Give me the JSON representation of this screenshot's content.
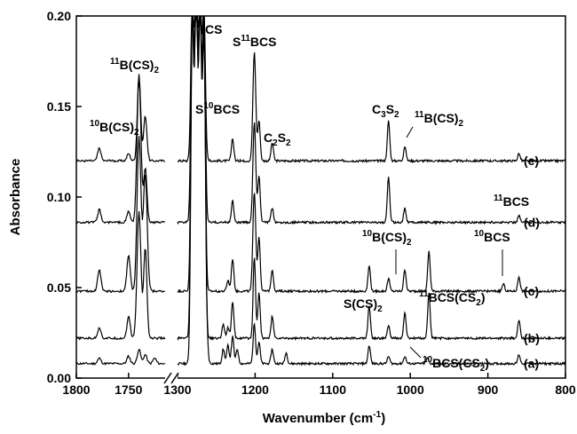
{
  "chart_data": {
    "type": "line",
    "xlabel_main": "Wavenumber (cm",
    "xlabel_sup": "-1",
    "xlabel_tail": ")",
    "ylabel": "Absorbance",
    "xlim": [
      1800,
      800
    ],
    "x_break": [
      1715,
      1300
    ],
    "ylim": [
      0.0,
      0.2
    ],
    "grid": false,
    "x_ticks": [
      {
        "value": 1800,
        "label": "1800"
      },
      {
        "value": 1750,
        "label": "1750"
      },
      {
        "value": 1300,
        "label": "1300"
      },
      {
        "value": 1200,
        "label": "1200"
      },
      {
        "value": 1100,
        "label": "1100"
      },
      {
        "value": 1000,
        "label": "1000"
      },
      {
        "value": 900,
        "label": "900"
      },
      {
        "value": 800,
        "label": "800"
      }
    ],
    "y_ticks": [
      {
        "value": 0.0,
        "label": "0.00"
      },
      {
        "value": 0.05,
        "label": "0.05"
      },
      {
        "value": 0.1,
        "label": "0.10"
      },
      {
        "value": 0.15,
        "label": "0.15"
      },
      {
        "value": 0.2,
        "label": "0.20"
      }
    ],
    "series": [
      {
        "label": "(a)",
        "baseline": 0.008,
        "peaks": [
          [
            1778,
            0.003
          ],
          [
            1750,
            0.004
          ],
          [
            1740,
            0.008
          ],
          [
            1734,
            0.005
          ],
          [
            1725,
            0.003
          ],
          [
            1281,
            0.19
          ],
          [
            1276,
            0.22
          ],
          [
            1271,
            0.21
          ],
          [
            1266,
            0.19
          ],
          [
            1262,
            0.01
          ],
          [
            1241,
            0.008
          ],
          [
            1235,
            0.01
          ],
          [
            1229,
            0.015
          ],
          [
            1223,
            0.008
          ],
          [
            1201,
            0.022
          ],
          [
            1195,
            0.012
          ],
          [
            1178,
            0.008
          ],
          [
            1160,
            0.006
          ],
          [
            1053,
            0.01
          ],
          [
            1028,
            0.004
          ],
          [
            1007,
            0.004
          ],
          [
            978,
            0.003
          ],
          [
            860,
            0.005
          ]
        ]
      },
      {
        "label": "(b)",
        "baseline": 0.022,
        "peaks": [
          [
            1778,
            0.006
          ],
          [
            1750,
            0.012
          ],
          [
            1740,
            0.07
          ],
          [
            1734,
            0.05
          ],
          [
            1281,
            0.19
          ],
          [
            1276,
            0.2
          ],
          [
            1271,
            0.19
          ],
          [
            1266,
            0.18
          ],
          [
            1241,
            0.008
          ],
          [
            1235,
            0.006
          ],
          [
            1229,
            0.02
          ],
          [
            1201,
            0.045
          ],
          [
            1195,
            0.025
          ],
          [
            1178,
            0.012
          ],
          [
            1053,
            0.018
          ],
          [
            1028,
            0.007
          ],
          [
            1007,
            0.014
          ],
          [
            976,
            0.025
          ],
          [
            860,
            0.01
          ]
        ]
      },
      {
        "label": "(c)",
        "baseline": 0.048,
        "peaks": [
          [
            1778,
            0.012
          ],
          [
            1750,
            0.02
          ],
          [
            1740,
            0.085
          ],
          [
            1734,
            0.065
          ],
          [
            1281,
            0.15
          ],
          [
            1276,
            0.16
          ],
          [
            1271,
            0.15
          ],
          [
            1266,
            0.14
          ],
          [
            1235,
            0.006
          ],
          [
            1229,
            0.018
          ],
          [
            1201,
            0.055
          ],
          [
            1195,
            0.03
          ],
          [
            1178,
            0.012
          ],
          [
            1053,
            0.014
          ],
          [
            1028,
            0.007
          ],
          [
            1007,
            0.012
          ],
          [
            976,
            0.022
          ],
          [
            880,
            0.004
          ],
          [
            860,
            0.008
          ]
        ]
      },
      {
        "label": "(d)",
        "baseline": 0.086,
        "peaks": [
          [
            1778,
            0.007
          ],
          [
            1750,
            0.006
          ],
          [
            1740,
            0.08
          ],
          [
            1734,
            0.03
          ],
          [
            1281,
            0.12
          ],
          [
            1276,
            0.125
          ],
          [
            1271,
            0.12
          ],
          [
            1266,
            0.11
          ],
          [
            1229,
            0.012
          ],
          [
            1201,
            0.055
          ],
          [
            1195,
            0.025
          ],
          [
            1178,
            0.008
          ],
          [
            1028,
            0.025
          ],
          [
            1007,
            0.008
          ],
          [
            860,
            0.004
          ]
        ]
      },
      {
        "label": "(e)",
        "baseline": 0.12,
        "peaks": [
          [
            1778,
            0.007
          ],
          [
            1750,
            0.004
          ],
          [
            1740,
            0.048
          ],
          [
            1734,
            0.025
          ],
          [
            1281,
            0.09
          ],
          [
            1276,
            0.095
          ],
          [
            1271,
            0.09
          ],
          [
            1266,
            0.085
          ],
          [
            1229,
            0.012
          ],
          [
            1201,
            0.06
          ],
          [
            1195,
            0.022
          ],
          [
            1178,
            0.01
          ],
          [
            1028,
            0.022
          ],
          [
            1007,
            0.008
          ],
          [
            860,
            0.004
          ]
        ]
      }
    ]
  },
  "annotations": {
    "b10_cs2_top": {
      "pre": "10",
      "main": "B(CS)",
      "sub": "2"
    },
    "b11_cs2_top": {
      "pre": "11",
      "main": "B(CS)",
      "sub": "2"
    },
    "cs": {
      "main": "CS"
    },
    "s11bcs": {
      "pre_main": "S",
      "pre": "11",
      "main": "BCS"
    },
    "s10bcs": {
      "pre_main": "S",
      "pre": "10",
      "main": "BCS"
    },
    "c2s2": {
      "main1": "C",
      "sub1": "2",
      "main2": "S",
      "sub2": "2"
    },
    "c3s2": {
      "main1": "C",
      "sub1": "3",
      "main2": "S",
      "sub2": "2"
    },
    "b11_cs2_right": {
      "pre": "11",
      "main": "B(CS)",
      "sub": "2"
    },
    "b11bcs": {
      "pre": "11",
      "main": "BCS"
    },
    "b10_cs2_mid": {
      "pre": "10",
      "main": "B(CS)",
      "sub": "2"
    },
    "b10bcs": {
      "pre": "10",
      "main": "BCS"
    },
    "scs2": {
      "main": "S(CS)",
      "sub": "2"
    },
    "b11bcs_cs2": {
      "pre": "11",
      "main": "BCS(CS",
      "sub": "2",
      "tail": ")"
    },
    "b10bcs_cs2": {
      "pre": "10",
      "main": "BCS(CS",
      "sub": "2",
      "tail": ")"
    }
  }
}
